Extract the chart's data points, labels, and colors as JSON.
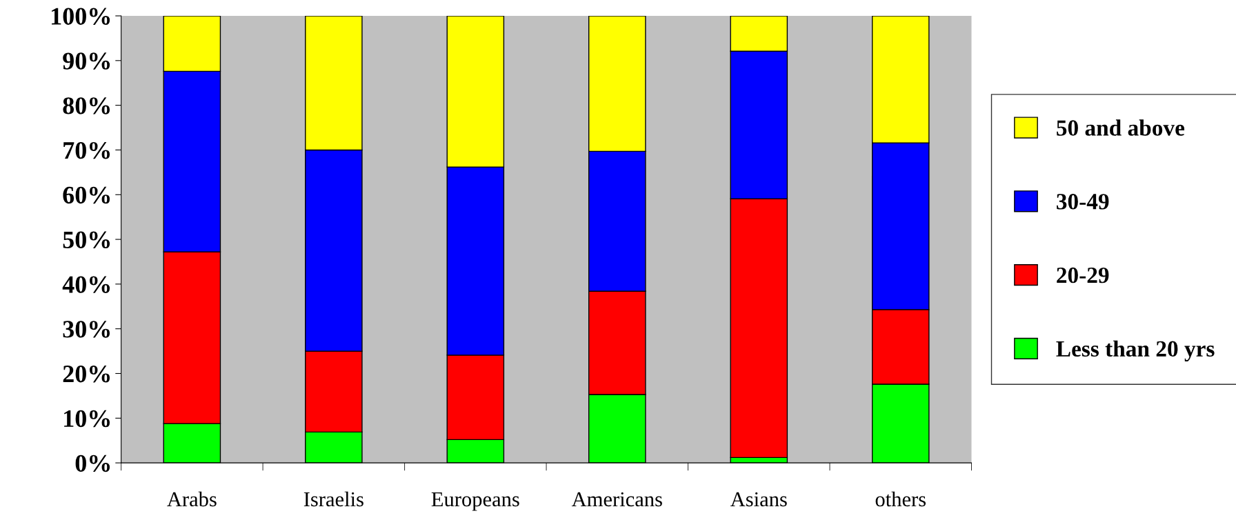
{
  "chart_data": {
    "type": "bar",
    "stacked": true,
    "categories": [
      "Arabs",
      "Israelis",
      "Europeans",
      "Americans",
      "Asians",
      "others"
    ],
    "series": [
      {
        "name": "Less than 20 yrs",
        "color": "#00ff00",
        "values": [
          8.8,
          6.9,
          5.2,
          15.3,
          1.2,
          17.6
        ]
      },
      {
        "name": "20-29",
        "color": "#ff0000",
        "values": [
          38.4,
          18.1,
          18.9,
          23.1,
          57.9,
          16.7
        ]
      },
      {
        "name": "30-49",
        "color": "#0000ff",
        "values": [
          40.4,
          45.0,
          42.1,
          31.3,
          33.0,
          37.3
        ]
      },
      {
        "name": "50 and above",
        "color": "#ffff00",
        "values": [
          12.4,
          30.0,
          33.8,
          30.3,
          7.9,
          28.4
        ]
      }
    ],
    "ylim": [
      0,
      100
    ],
    "yticks": [
      {
        "value": 0,
        "label": "0%"
      },
      {
        "value": 10,
        "label": "10%"
      },
      {
        "value": 20,
        "label": "20%"
      },
      {
        "value": 30,
        "label": "30%"
      },
      {
        "value": 40,
        "label": "40%"
      },
      {
        "value": 50,
        "label": "50%"
      },
      {
        "value": 60,
        "label": "60%"
      },
      {
        "value": 70,
        "label": "70%"
      },
      {
        "value": 80,
        "label": "80%"
      },
      {
        "value": 90,
        "label": "90%"
      },
      {
        "value": 100,
        "label": "100%"
      }
    ],
    "grid": false,
    "legend": "right"
  }
}
